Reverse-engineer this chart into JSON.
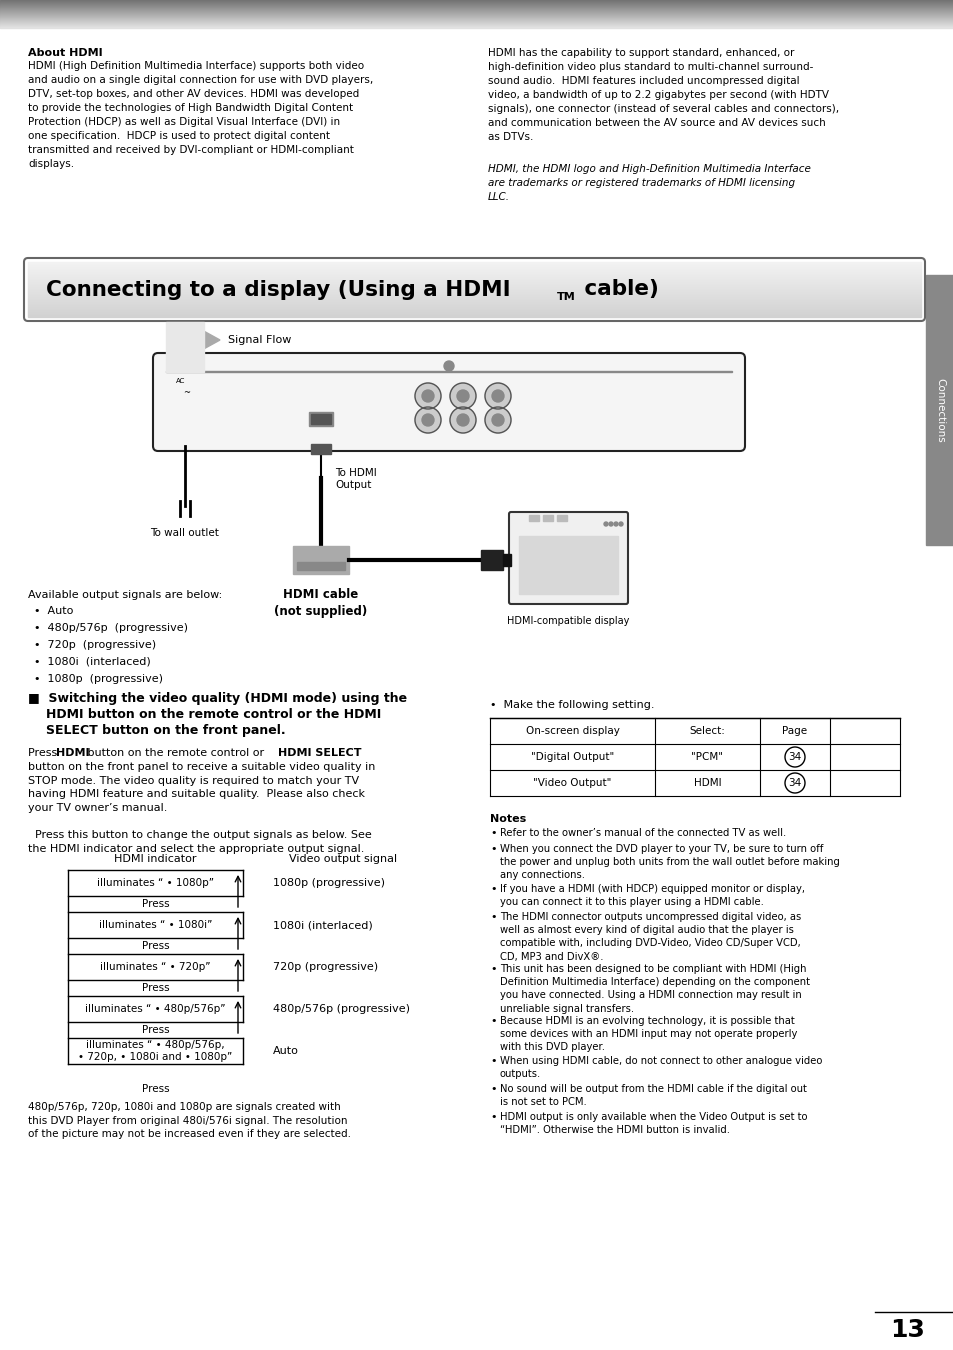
{
  "page_bg": "#ffffff",
  "sidebar_color": "#888888",
  "sidebar_text": "Connections",
  "page_number": "13",
  "about_hdmi_bold": "About HDMI",
  "about_hdmi_left": "HDMI (High Definition Multimedia Interface) supports both video\nand audio on a single digital connection for use with DVD players,\nDTV, set-top boxes, and other AV devices. HDMI was developed\nto provide the technologies of High Bandwidth Digital Content\nProtection (HDCP) as well as Digital Visual Interface (DVI) in\none specification.  HDCP is used to protect digital content\ntransmitted and received by DVI-compliant or HDMI-compliant\ndisplays.",
  "about_hdmi_right": "HDMI has the capability to support standard, enhanced, or\nhigh-definition video plus standard to multi-channel surround-\nsound audio.  HDMI features included uncompressed digital\nvideo, a bandwidth of up to 2.2 gigabytes per second (with HDTV\nsignals), one connector (instead of several cables and connectors),\nand communication between the AV source and AV devices such\nas DTVs.",
  "about_hdmi_italic": "HDMI, the HDMI logo and High-Definition Multimedia Interface\nare trademarks or registered trademarks of HDMI licensing\nLLC.",
  "title_text1": "Connecting to a display (Using a HDMI",
  "title_tm": "TM",
  "title_text2": " cable)",
  "signal_flow_text": "Signal Flow",
  "to_wall_outlet": "To wall outlet",
  "to_hdmi_output": "To HDMI\nOutput",
  "hdmi_cable_text": "HDMI cable\n(not supplied)",
  "hdmi_display_text": "HDMI-compatible display",
  "available_signals_header": "Available output signals are below:",
  "available_signals": [
    "Auto",
    "480p/576p  (progressive)",
    "720p  (progressive)",
    "1080i  (interlaced)",
    "1080p  (progressive)"
  ],
  "switching_header_line1": "■  Switching the video quality (HDMI mode) using the",
  "switching_header_line2": "HDMI button on the remote control or the HDMI",
  "switching_header_line3": "SELECT button on the front panel.",
  "switching_body1": "Press ",
  "switching_body1b": "HDMI",
  "switching_body1c": " button on the remote control or ",
  "switching_body1d": "HDMI SELECT",
  "switching_body2": "button on the front panel to receive a suitable video quality in\nSTOP mode. The video quality is required to match your TV\nhaving HDMI feature and suitable quality.  Please also check\nyour TV owner’s manual.",
  "switching_body3": "  Press this button to change the output signals as below. See\nthe HDMI indicator and select the appropriate output signal.",
  "make_setting_text": "•  Make the following setting.",
  "table_headers": [
    "On-screen display",
    "Select:",
    "Page"
  ],
  "table_row1": [
    "\"Digital Output\"",
    "\"PCM\"",
    "34"
  ],
  "table_row2": [
    "\"Video Output\"",
    "HDMI",
    "34"
  ],
  "hdmi_indicator_label": "HDMI indicator",
  "video_output_label": "Video output signal",
  "indicator_rows": [
    {
      "indicator": "illuminates “ • 1080p”",
      "signal": "1080p (progressive)"
    },
    {
      "indicator": "illuminates “ • 1080i”",
      "signal": "1080i (interlaced)"
    },
    {
      "indicator": "illuminates “ • 720p”",
      "signal": "720p (progressive)"
    },
    {
      "indicator": "illuminates “ • 480p/576p”",
      "signal": "480p/576p (progressive)"
    },
    {
      "indicator": "illuminates “ • 480p/576p,\n• 720p, • 1080i and • 1080p”",
      "signal": "Auto"
    }
  ],
  "press_label": "Press",
  "bottom_press": "Press",
  "bottom_note": "480p/576p, 720p, 1080i and 1080p are signals created with\nthis DVD Player from original 480i/576i signal. The resolution\nof the picture may not be increased even if they are selected.",
  "notes_header": "Notes",
  "notes": [
    "Refer to the owner’s manual of the connected TV as well.",
    "When you connect the DVD player to your TV, be sure to turn off\nthe power and unplug both units from the wall outlet before making\nany connections.",
    "If you have a HDMI (with HDCP) equipped monitor or display,\nyou can connect it to this player using a HDMI cable.",
    "The HDMI connector outputs uncompressed digital video, as\nwell as almost every kind of digital audio that the player is\ncompatible with, including DVD-Video, Video CD/Super VCD,\nCD, MP3 and DivX®.",
    "This unit has been designed to be compliant with HDMI (High\nDefinition Multimedia Interface) depending on the component\nyou have connected. Using a HDMI connection may result in\nunreliable signal transfers.",
    "Because HDMI is an evolving technology, it is possible that\nsome devices with an HDMI input may not operate properly\nwith this DVD player.",
    "When using HDMI cable, do not connect to other analogue video\noutputs.",
    "No sound will be output from the HDMI cable if the digital out\nis not set to PCM.",
    "HDMI output is only available when the Video Output is set to\n“HDMI”. Otherwise the HDMI button is invalid."
  ]
}
